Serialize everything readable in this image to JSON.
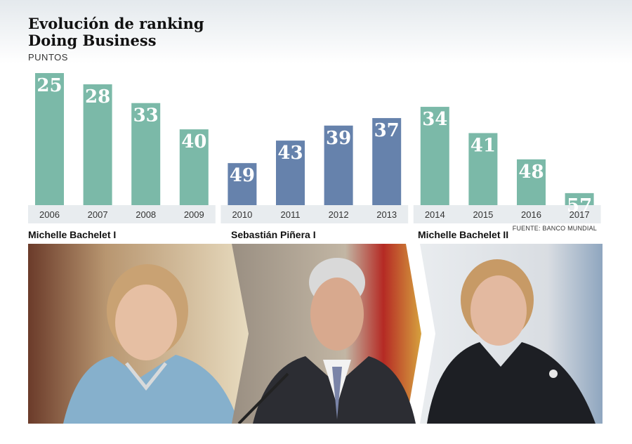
{
  "header": {
    "title_line1": "Evolución de ranking",
    "title_line2": "Doing Business",
    "units": "PUNTOS"
  },
  "source": "FUENTE: BANCO MUNDIAL",
  "colors": {
    "teal": "#7bb9a8",
    "blue": "#6682ac",
    "tick_band": "#e8ecef"
  },
  "chart_data": {
    "type": "bar",
    "categories": [
      "2006",
      "2007",
      "2008",
      "2009",
      "2010",
      "2011",
      "2012",
      "2013",
      "2014",
      "2015",
      "2016",
      "2017"
    ],
    "values": [
      25,
      28,
      33,
      40,
      49,
      43,
      39,
      37,
      34,
      41,
      48,
      57
    ],
    "note": "Lower ranking position is drawn as a taller bar (inverted scale).",
    "title": "Evolución de ranking Doing Business",
    "ylabel": "PUNTOS",
    "grid": false,
    "groups": [
      {
        "name": "Michelle Bachelet I",
        "categories": [
          "2006",
          "2007",
          "2008",
          "2009"
        ],
        "color": "#7bb9a8"
      },
      {
        "name": "Sebastián Piñera I",
        "categories": [
          "2010",
          "2011",
          "2012",
          "2013"
        ],
        "color": "#6682ac"
      },
      {
        "name": "Michelle Bachelet II",
        "categories": [
          "2014",
          "2015",
          "2016",
          "2017"
        ],
        "color": "#7bb9a8"
      }
    ]
  },
  "photos": [
    {
      "caption": "Michelle Bachelet I",
      "icon": "portrait-bachelet-1",
      "bg": "#c9b48a",
      "suit": "#7fa9c4"
    },
    {
      "caption": "Sebastián Piñera I",
      "icon": "portrait-pinera",
      "bg": "#a89c8c",
      "suit": "#2c2d33"
    },
    {
      "caption": "Michelle Bachelet II",
      "icon": "portrait-bachelet-2",
      "bg": "#d8dde3",
      "suit": "#1d1f24"
    }
  ]
}
